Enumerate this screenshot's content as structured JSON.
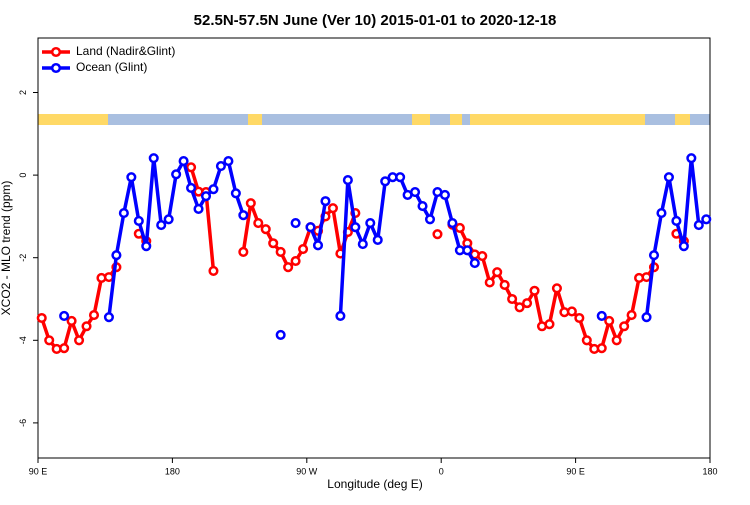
{
  "chart_data": {
    "type": "line",
    "title": "52.5N-57.5N June (Ver 10)   2015-01-01 to 2020-12-18",
    "xlabel": "Longitude (deg E)",
    "ylabel": "XCO2 - MLO trend (ppm)",
    "x": [
      92.5,
      97.5,
      102.5,
      107.5,
      112.5,
      117.5,
      122.5,
      127.5,
      132.5,
      137.5,
      142.5,
      147.5,
      152.5,
      157.5,
      162.5,
      167.5,
      172.5,
      177.5,
      182.5,
      187.5,
      192.5,
      197.5,
      202.5,
      207.5,
      212.5,
      217.5,
      222.5,
      227.5,
      232.5,
      237.5,
      242.5,
      247.5,
      252.5,
      257.5,
      262.5,
      267.5,
      272.5,
      277.5,
      282.5,
      287.5,
      292.5,
      297.5,
      302.5,
      307.5,
      312.5,
      317.5,
      322.5,
      327.5,
      332.5,
      337.5,
      342.5,
      347.5,
      352.5,
      357.5,
      362.5,
      367.5,
      372.5,
      377.5,
      382.5,
      387.5,
      392.5,
      397.5,
      402.5,
      407.5,
      412.5,
      417.5,
      422.5,
      427.5,
      432.5,
      437.5,
      442.5,
      447.5,
      452.5,
      457.5,
      462.5,
      467.5,
      472.5,
      477.5,
      482.5,
      487.5,
      492.5,
      497.5,
      502.5,
      507.5,
      512.5,
      517.5,
      522.5,
      527.5,
      532.5,
      537.5
    ],
    "series": [
      {
        "name": "Land (Nadir&Glint)",
        "color": "#ff0000",
        "values": [
          -3.46,
          -4,
          -4.21,
          -4.19,
          -3.53,
          -4,
          -3.66,
          -3.39,
          -2.49,
          -2.47,
          -2.23,
          null,
          null,
          -1.42,
          -1.6,
          null,
          null,
          null,
          null,
          null,
          0.19,
          -0.4,
          -0.41,
          -2.32,
          null,
          null,
          null,
          -1.86,
          -0.68,
          -1.16,
          -1.31,
          -1.65,
          -1.86,
          -2.23,
          -2.08,
          -1.79,
          -1.26,
          -1.35,
          -1,
          -0.8,
          -1.9,
          -1.38,
          -0.92,
          null,
          null,
          null,
          null,
          null,
          null,
          null,
          null,
          null,
          null,
          -1.43,
          null,
          -1.2,
          -1.28,
          -1.65,
          -1.92,
          -1.96,
          -2.6,
          -2.35,
          -2.66,
          -3,
          -3.2,
          -3.1,
          -2.8,
          -3.66,
          -3.61,
          -2.74,
          -3.32,
          -3.3,
          -3.46,
          -4,
          -4.21,
          -4.19,
          -3.53,
          -4,
          -3.66,
          -3.39,
          -2.49,
          -2.47,
          -2.23,
          null,
          null,
          -1.42,
          -1.6,
          null,
          null,
          null
        ]
      },
      {
        "name": "Ocean (Glint)",
        "color": "#0000ff",
        "values": [
          null,
          null,
          null,
          -3.41,
          null,
          null,
          null,
          null,
          null,
          -3.44,
          -1.94,
          -0.92,
          -0.05,
          -1.11,
          -1.72,
          0.41,
          -1.21,
          -1.07,
          0.02,
          0.34,
          -0.31,
          -0.82,
          -0.51,
          -0.34,
          0.22,
          0.34,
          -0.44,
          -0.97,
          null,
          null,
          null,
          null,
          -3.87,
          null,
          -1.16,
          null,
          -1.26,
          -1.7,
          -0.63,
          null,
          -3.41,
          -0.12,
          -1.26,
          -1.67,
          -1.16,
          -1.57,
          -0.15,
          -0.05,
          -0.05,
          -0.48,
          -0.41,
          -0.75,
          -1.07,
          -0.41,
          -0.48,
          -1.16,
          -1.82,
          -1.82,
          -2.13,
          null,
          null,
          null,
          null,
          null,
          null,
          null,
          null,
          null,
          null,
          null,
          null,
          null,
          null,
          null,
          null,
          -3.41,
          null,
          null,
          null,
          null,
          null,
          -3.44,
          -1.94,
          -0.92,
          -0.05,
          -1.11,
          -1.72,
          0.41,
          -1.21,
          -1.07
        ]
      }
    ],
    "xlim": [
      90,
      540
    ],
    "xticks": [
      {
        "value": 90,
        "label": "90 E"
      },
      180,
      {
        "value": 270,
        "label": "90 W"
      },
      {
        "value": 360,
        "label": "0"
      },
      {
        "value": 450,
        "label": "90 E"
      },
      {
        "value": 540,
        "label": "180"
      }
    ],
    "ylim": [
      -6.85,
      3.32
    ],
    "yticks": [
      2,
      0,
      -2,
      -4,
      -6
    ],
    "legend": "topleft"
  }
}
